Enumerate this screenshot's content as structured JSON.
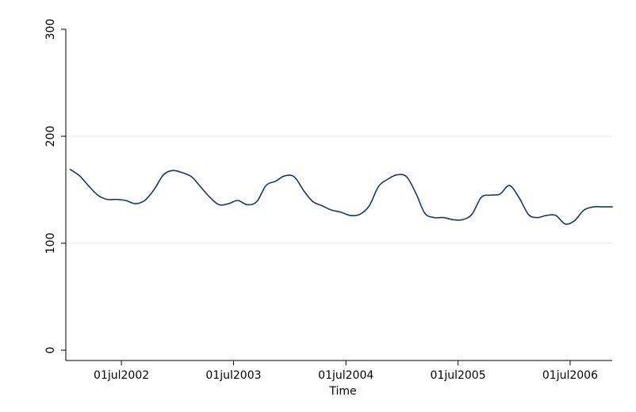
{
  "chart_data": {
    "type": "line",
    "title": "",
    "xlabel": "Time",
    "ylabel": "",
    "ylim": [
      0,
      300
    ],
    "xlim": [
      "2002-01-01",
      "2006-11-15"
    ],
    "yticks": [
      {
        "value": 0,
        "label": "0"
      },
      {
        "value": 100,
        "label": "100"
      },
      {
        "value": 200,
        "label": "200"
      },
      {
        "value": 300,
        "label": "300"
      }
    ],
    "xticks": [
      {
        "value": "2002-07-01",
        "label": "01jul2002"
      },
      {
        "value": "2003-07-01",
        "label": "01jul2003"
      },
      {
        "value": "2004-07-01",
        "label": "01jul2004"
      },
      {
        "value": "2005-07-01",
        "label": "01jul2005"
      },
      {
        "value": "2006-07-01",
        "label": "01jul2006"
      }
    ],
    "grid": {
      "horizontal": true,
      "lines_at": [
        100,
        200
      ]
    },
    "series": [
      {
        "color": "#1a3a5c",
        "x": [
          "2002-01-15",
          "2002-02-15",
          "2002-03-15",
          "2002-04-15",
          "2002-05-15",
          "2002-06-15",
          "2002-07-15",
          "2002-08-15",
          "2002-09-15",
          "2002-10-15",
          "2002-11-15",
          "2002-12-15",
          "2003-01-15",
          "2003-02-15",
          "2003-03-15",
          "2003-04-15",
          "2003-05-15",
          "2003-06-15",
          "2003-07-15",
          "2003-08-15",
          "2003-09-15",
          "2003-10-15",
          "2003-11-15",
          "2003-12-15",
          "2004-01-15",
          "2004-02-15",
          "2004-03-15",
          "2004-04-15",
          "2004-05-15",
          "2004-06-15",
          "2004-07-15",
          "2004-08-15",
          "2004-09-15",
          "2004-10-15",
          "2004-11-15",
          "2004-12-15",
          "2005-01-15",
          "2005-02-15",
          "2005-03-15",
          "2005-04-15",
          "2005-05-15",
          "2005-06-15",
          "2005-07-15",
          "2005-08-15",
          "2005-09-15",
          "2005-10-15",
          "2005-11-15",
          "2005-12-15",
          "2006-01-15",
          "2006-02-15",
          "2006-03-15",
          "2006-04-15",
          "2006-05-15",
          "2006-06-15",
          "2006-07-15",
          "2006-08-15",
          "2006-09-15",
          "2006-10-15",
          "2006-11-15"
        ],
        "values": [
          169,
          163,
          154,
          145,
          141,
          141,
          140,
          137,
          140,
          150,
          164,
          168,
          166,
          162,
          153,
          143,
          136,
          137,
          140,
          136,
          139,
          154,
          158,
          163,
          162,
          149,
          139,
          135,
          131,
          129,
          126,
          127,
          135,
          153,
          160,
          164,
          162,
          146,
          128,
          124,
          124,
          122,
          122,
          127,
          143,
          145,
          146,
          154,
          143,
          127,
          124,
          126,
          126,
          118,
          121,
          131,
          134,
          134,
          134
        ]
      }
    ]
  }
}
